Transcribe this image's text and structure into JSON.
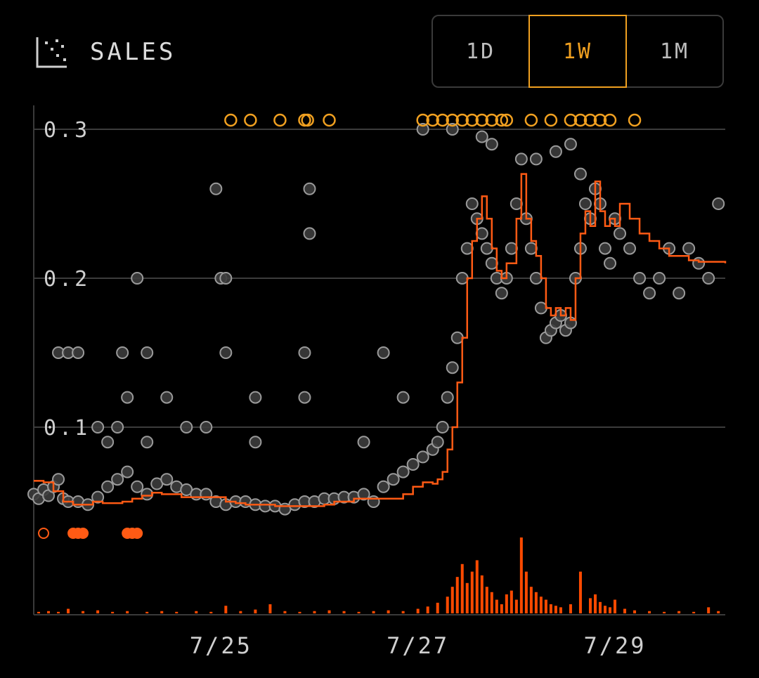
{
  "header": {
    "title": "SALES",
    "icon": "scatter-chart-icon"
  },
  "range_selector": {
    "options": [
      "1D",
      "1W",
      "1M"
    ],
    "selected": "1W"
  },
  "colors": {
    "background": "#000000",
    "accent": "#f0a020",
    "line": "#ff5a14",
    "dots": "#9a9a9a",
    "bars": "#ff4a00"
  },
  "chart_data": {
    "type": "scatter",
    "title": "SALES",
    "xlabel": "",
    "ylabel": "",
    "x_ticks": [
      "7/25",
      "7/27",
      "7/29"
    ],
    "x_tick_values": [
      24.95,
      26.95,
      28.95
    ],
    "xlim": [
      23.05,
      30.07
    ],
    "y_ticks": [
      "0.1",
      "0.2",
      "0.3"
    ],
    "ylim": [
      0.04,
      0.315
    ],
    "grid": true,
    "series": [
      {
        "type": "step-line",
        "points": [
          [
            23.05,
            0.064
          ],
          [
            23.15,
            0.063
          ],
          [
            23.25,
            0.057
          ],
          [
            23.35,
            0.05
          ],
          [
            23.45,
            0.048
          ],
          [
            23.55,
            0.048
          ],
          [
            23.65,
            0.05
          ],
          [
            23.75,
            0.049
          ],
          [
            23.85,
            0.049
          ],
          [
            23.95,
            0.05
          ],
          [
            24.05,
            0.052
          ],
          [
            24.15,
            0.054
          ],
          [
            24.25,
            0.056
          ],
          [
            24.35,
            0.055
          ],
          [
            24.45,
            0.055
          ],
          [
            24.55,
            0.053
          ],
          [
            24.65,
            0.053
          ],
          [
            24.75,
            0.053
          ],
          [
            24.85,
            0.053
          ],
          [
            25.0,
            0.05
          ],
          [
            25.1,
            0.049
          ],
          [
            25.2,
            0.048
          ],
          [
            25.3,
            0.048
          ],
          [
            25.5,
            0.047
          ],
          [
            25.7,
            0.047
          ],
          [
            25.9,
            0.047
          ],
          [
            26.0,
            0.048
          ],
          [
            26.1,
            0.05
          ],
          [
            26.3,
            0.052
          ],
          [
            26.5,
            0.052
          ],
          [
            26.7,
            0.052
          ],
          [
            26.8,
            0.055
          ],
          [
            26.9,
            0.06
          ],
          [
            27.0,
            0.063
          ],
          [
            27.1,
            0.062
          ],
          [
            27.15,
            0.065
          ],
          [
            27.2,
            0.07
          ],
          [
            27.25,
            0.085
          ],
          [
            27.3,
            0.1
          ],
          [
            27.35,
            0.13
          ],
          [
            27.4,
            0.16
          ],
          [
            27.45,
            0.2
          ],
          [
            27.5,
            0.225
          ],
          [
            27.55,
            0.24
          ],
          [
            27.6,
            0.255
          ],
          [
            27.65,
            0.24
          ],
          [
            27.7,
            0.22
          ],
          [
            27.75,
            0.205
          ],
          [
            27.8,
            0.2
          ],
          [
            27.85,
            0.21
          ],
          [
            27.9,
            0.21
          ],
          [
            27.95,
            0.24
          ],
          [
            28.0,
            0.27
          ],
          [
            28.05,
            0.24
          ],
          [
            28.1,
            0.225
          ],
          [
            28.15,
            0.215
          ],
          [
            28.2,
            0.2
          ],
          [
            28.25,
            0.18
          ],
          [
            28.3,
            0.175
          ],
          [
            28.35,
            0.18
          ],
          [
            28.4,
            0.175
          ],
          [
            28.45,
            0.18
          ],
          [
            28.5,
            0.172
          ],
          [
            28.55,
            0.2
          ],
          [
            28.6,
            0.23
          ],
          [
            28.65,
            0.245
          ],
          [
            28.7,
            0.235
          ],
          [
            28.75,
            0.265
          ],
          [
            28.8,
            0.245
          ],
          [
            28.85,
            0.235
          ],
          [
            28.9,
            0.24
          ],
          [
            28.95,
            0.235
          ],
          [
            29.0,
            0.25
          ],
          [
            29.1,
            0.24
          ],
          [
            29.2,
            0.23
          ],
          [
            29.3,
            0.225
          ],
          [
            29.4,
            0.22
          ],
          [
            29.5,
            0.215
          ],
          [
            29.6,
            0.215
          ],
          [
            29.7,
            0.212
          ],
          [
            29.8,
            0.211
          ],
          [
            30.07,
            0.21
          ]
        ]
      },
      {
        "type": "scatter",
        "points": [
          [
            23.05,
            0.055
          ],
          [
            23.1,
            0.052
          ],
          [
            23.15,
            0.058
          ],
          [
            23.2,
            0.054
          ],
          [
            23.25,
            0.06
          ],
          [
            23.3,
            0.065
          ],
          [
            23.35,
            0.052
          ],
          [
            23.4,
            0.05
          ],
          [
            23.5,
            0.05
          ],
          [
            23.6,
            0.048
          ],
          [
            23.7,
            0.053
          ],
          [
            23.8,
            0.06
          ],
          [
            23.9,
            0.065
          ],
          [
            24.0,
            0.07
          ],
          [
            24.1,
            0.06
          ],
          [
            24.2,
            0.055
          ],
          [
            24.3,
            0.062
          ],
          [
            24.4,
            0.065
          ],
          [
            24.5,
            0.06
          ],
          [
            24.6,
            0.058
          ],
          [
            24.7,
            0.055
          ],
          [
            24.8,
            0.055
          ],
          [
            24.9,
            0.05
          ],
          [
            25.0,
            0.048
          ],
          [
            25.1,
            0.05
          ],
          [
            25.2,
            0.05
          ],
          [
            25.3,
            0.048
          ],
          [
            25.4,
            0.047
          ],
          [
            25.5,
            0.047
          ],
          [
            25.6,
            0.045
          ],
          [
            25.7,
            0.048
          ],
          [
            25.8,
            0.05
          ],
          [
            25.9,
            0.05
          ],
          [
            26.0,
            0.052
          ],
          [
            26.1,
            0.052
          ],
          [
            26.2,
            0.053
          ],
          [
            26.3,
            0.053
          ],
          [
            26.4,
            0.055
          ],
          [
            26.5,
            0.05
          ],
          [
            26.6,
            0.06
          ],
          [
            26.7,
            0.065
          ],
          [
            26.8,
            0.07
          ],
          [
            26.9,
            0.075
          ],
          [
            27.0,
            0.08
          ],
          [
            27.1,
            0.085
          ],
          [
            27.15,
            0.09
          ],
          [
            27.2,
            0.1
          ],
          [
            27.25,
            0.12
          ],
          [
            27.3,
            0.14
          ],
          [
            27.35,
            0.16
          ],
          [
            27.4,
            0.2
          ],
          [
            27.45,
            0.22
          ],
          [
            27.5,
            0.25
          ],
          [
            27.55,
            0.24
          ],
          [
            27.6,
            0.23
          ],
          [
            27.65,
            0.22
          ],
          [
            27.7,
            0.21
          ],
          [
            27.75,
            0.2
          ],
          [
            27.8,
            0.19
          ],
          [
            27.85,
            0.2
          ],
          [
            27.9,
            0.22
          ],
          [
            27.95,
            0.25
          ],
          [
            28.0,
            0.28
          ],
          [
            28.05,
            0.24
          ],
          [
            28.1,
            0.22
          ],
          [
            28.15,
            0.2
          ],
          [
            28.2,
            0.18
          ],
          [
            28.25,
            0.16
          ],
          [
            28.3,
            0.165
          ],
          [
            28.35,
            0.17
          ],
          [
            28.4,
            0.175
          ],
          [
            28.45,
            0.165
          ],
          [
            28.5,
            0.17
          ],
          [
            28.55,
            0.2
          ],
          [
            28.6,
            0.22
          ],
          [
            28.65,
            0.25
          ],
          [
            28.7,
            0.24
          ],
          [
            28.75,
            0.26
          ],
          [
            28.8,
            0.25
          ],
          [
            28.85,
            0.22
          ],
          [
            28.9,
            0.21
          ],
          [
            28.95,
            0.24
          ],
          [
            29.0,
            0.23
          ],
          [
            29.1,
            0.22
          ],
          [
            29.2,
            0.2
          ],
          [
            29.3,
            0.19
          ],
          [
            29.4,
            0.2
          ],
          [
            29.5,
            0.22
          ],
          [
            29.6,
            0.19
          ],
          [
            29.7,
            0.22
          ],
          [
            29.8,
            0.21
          ],
          [
            29.9,
            0.2
          ],
          [
            30.0,
            0.25
          ],
          [
            23.3,
            0.15
          ],
          [
            23.4,
            0.15
          ],
          [
            23.5,
            0.15
          ],
          [
            23.95,
            0.15
          ],
          [
            24.2,
            0.15
          ],
          [
            25.0,
            0.15
          ],
          [
            25.8,
            0.15
          ],
          [
            26.6,
            0.15
          ],
          [
            24.0,
            0.12
          ],
          [
            24.4,
            0.12
          ],
          [
            25.3,
            0.12
          ],
          [
            25.8,
            0.12
          ],
          [
            26.8,
            0.12
          ],
          [
            24.9,
            0.26
          ],
          [
            25.85,
            0.26
          ],
          [
            25.85,
            0.23
          ],
          [
            24.95,
            0.2
          ],
          [
            25.0,
            0.2
          ],
          [
            24.1,
            0.2
          ],
          [
            23.7,
            0.1
          ],
          [
            23.9,
            0.1
          ],
          [
            24.6,
            0.1
          ],
          [
            24.8,
            0.1
          ],
          [
            23.8,
            0.09
          ],
          [
            24.2,
            0.09
          ],
          [
            25.3,
            0.09
          ],
          [
            26.4,
            0.09
          ],
          [
            27.0,
            0.3
          ],
          [
            27.3,
            0.3
          ],
          [
            27.6,
            0.295
          ],
          [
            27.7,
            0.29
          ],
          [
            28.15,
            0.28
          ],
          [
            28.35,
            0.285
          ],
          [
            28.5,
            0.29
          ],
          [
            28.6,
            0.27
          ]
        ]
      },
      {
        "type": "scatter-capped-high",
        "points": [
          [
            25.05,
            0.305
          ],
          [
            25.25,
            0.305
          ],
          [
            25.55,
            0.305
          ],
          [
            25.8,
            0.305
          ],
          [
            25.83,
            0.305
          ],
          [
            26.05,
            0.305
          ],
          [
            27.0,
            0.305
          ],
          [
            27.1,
            0.305
          ],
          [
            27.2,
            0.305
          ],
          [
            27.3,
            0.305
          ],
          [
            27.4,
            0.305
          ],
          [
            27.5,
            0.305
          ],
          [
            27.6,
            0.305
          ],
          [
            27.7,
            0.305
          ],
          [
            27.8,
            0.305
          ],
          [
            27.85,
            0.305
          ],
          [
            28.1,
            0.305
          ],
          [
            28.3,
            0.305
          ],
          [
            28.5,
            0.305
          ],
          [
            28.6,
            0.305
          ],
          [
            28.7,
            0.305
          ],
          [
            28.8,
            0.305
          ],
          [
            28.9,
            0.305
          ],
          [
            29.15,
            0.305
          ]
        ]
      },
      {
        "type": "scatter-capped-low",
        "points": [
          [
            23.15,
            0.042
          ],
          [
            23.45,
            0.042
          ],
          [
            23.5,
            0.042
          ],
          [
            23.55,
            0.042
          ],
          [
            24.0,
            0.042
          ],
          [
            24.05,
            0.042
          ],
          [
            24.1,
            0.042
          ]
        ]
      },
      {
        "type": "volume-bars",
        "points": [
          [
            23.1,
            2
          ],
          [
            23.2,
            3
          ],
          [
            23.3,
            2
          ],
          [
            23.4,
            6
          ],
          [
            23.55,
            3
          ],
          [
            23.7,
            4
          ],
          [
            23.85,
            2
          ],
          [
            24.0,
            3
          ],
          [
            24.2,
            2
          ],
          [
            24.35,
            3
          ],
          [
            24.5,
            2
          ],
          [
            24.7,
            3
          ],
          [
            24.85,
            2
          ],
          [
            25.0,
            10
          ],
          [
            25.15,
            3
          ],
          [
            25.3,
            5
          ],
          [
            25.45,
            12
          ],
          [
            25.6,
            3
          ],
          [
            25.75,
            2
          ],
          [
            25.9,
            3
          ],
          [
            26.05,
            4
          ],
          [
            26.2,
            3
          ],
          [
            26.35,
            2
          ],
          [
            26.5,
            3
          ],
          [
            26.65,
            4
          ],
          [
            26.8,
            3
          ],
          [
            26.95,
            6
          ],
          [
            27.05,
            9
          ],
          [
            27.15,
            14
          ],
          [
            27.25,
            22
          ],
          [
            27.3,
            35
          ],
          [
            27.35,
            48
          ],
          [
            27.4,
            65
          ],
          [
            27.45,
            40
          ],
          [
            27.5,
            55
          ],
          [
            27.55,
            70
          ],
          [
            27.6,
            50
          ],
          [
            27.65,
            35
          ],
          [
            27.7,
            28
          ],
          [
            27.75,
            18
          ],
          [
            27.8,
            12
          ],
          [
            27.85,
            25
          ],
          [
            27.9,
            30
          ],
          [
            27.95,
            18
          ],
          [
            28.0,
            100
          ],
          [
            28.05,
            55
          ],
          [
            28.1,
            35
          ],
          [
            28.15,
            28
          ],
          [
            28.2,
            22
          ],
          [
            28.25,
            18
          ],
          [
            28.3,
            12
          ],
          [
            28.35,
            10
          ],
          [
            28.4,
            8
          ],
          [
            28.5,
            12
          ],
          [
            28.6,
            55
          ],
          [
            28.7,
            20
          ],
          [
            28.75,
            25
          ],
          [
            28.8,
            15
          ],
          [
            28.85,
            10
          ],
          [
            28.9,
            8
          ],
          [
            28.95,
            18
          ],
          [
            29.05,
            6
          ],
          [
            29.15,
            4
          ],
          [
            29.3,
            3
          ],
          [
            29.45,
            2
          ],
          [
            29.6,
            3
          ],
          [
            29.75,
            2
          ],
          [
            29.9,
            8
          ],
          [
            30.0,
            3
          ]
        ]
      }
    ]
  }
}
